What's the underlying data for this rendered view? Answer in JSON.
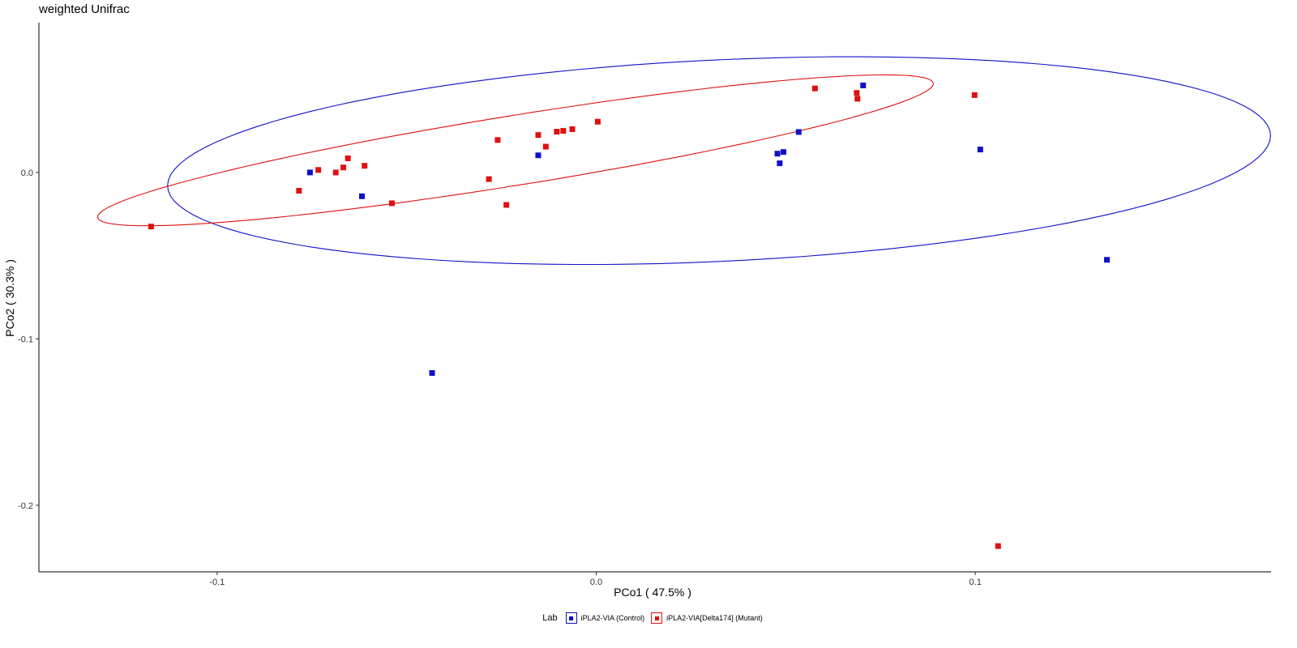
{
  "chart_data": {
    "type": "scatter",
    "title": "weighted Unifrac",
    "xlabel": "PCo1 ( 47.5% )",
    "ylabel": "PCo2 ( 30.3% )",
    "xlim": [
      -0.147,
      0.178
    ],
    "ylim": [
      -0.24,
      0.09
    ],
    "x_ticks": [
      -0.1,
      0.0,
      0.1
    ],
    "x_tick_labels": [
      "-0.1",
      "0.0",
      "0.1"
    ],
    "y_ticks": [
      0.0,
      -0.1,
      -0.2
    ],
    "y_tick_labels": [
      "0.0",
      "-0.1",
      "-0.2"
    ],
    "grid": false,
    "legend": {
      "title": "Lab",
      "position": "bottom",
      "entries": [
        "iPLA2-VIA (Control)",
        "iPLA2-VIA[Delta174] (Mutant)"
      ]
    },
    "colors": {
      "control": "#1010c8",
      "mutant": "#e01010"
    },
    "series": [
      {
        "name": "iPLA2-VIA (Control)",
        "color": "#1010c8",
        "points": [
          [
            -0.0755,
            0.0
          ],
          [
            -0.0618,
            -0.0143
          ],
          [
            -0.0433,
            -0.1205
          ],
          [
            -0.0153,
            0.0103
          ],
          [
            0.0478,
            0.0113
          ],
          [
            0.0484,
            0.0055
          ],
          [
            0.0494,
            0.0123
          ],
          [
            0.0534,
            0.0243
          ],
          [
            0.0704,
            0.0523
          ],
          [
            0.1013,
            0.0138
          ],
          [
            0.1347,
            -0.0525
          ]
        ]
      },
      {
        "name": "iPLA2-VIA[Delta174] (Mutant)",
        "color": "#e01010",
        "points": [
          [
            -0.1174,
            -0.0325
          ],
          [
            -0.0784,
            -0.011
          ],
          [
            -0.0733,
            0.0015
          ],
          [
            -0.0687,
            0.0
          ],
          [
            -0.0667,
            0.003
          ],
          [
            -0.0655,
            0.0085
          ],
          [
            -0.0611,
            0.004
          ],
          [
            -0.0539,
            -0.0185
          ],
          [
            -0.0283,
            -0.004
          ],
          [
            -0.026,
            0.0195
          ],
          [
            -0.0237,
            -0.0195
          ],
          [
            -0.0153,
            0.0225
          ],
          [
            -0.0133,
            0.0155
          ],
          [
            -0.0104,
            0.0245
          ],
          [
            -0.0087,
            0.025
          ],
          [
            -0.0063,
            0.026
          ],
          [
            0.0004,
            0.0305
          ],
          [
            0.0577,
            0.0505
          ],
          [
            0.0687,
            0.0478
          ],
          [
            0.0689,
            0.0443
          ],
          [
            0.0998,
            0.0465
          ],
          [
            0.106,
            -0.2245
          ]
        ]
      }
    ],
    "ellipses": [
      {
        "group": "iPLA2-VIA (Control)",
        "color": "#1010c8",
        "center": [
          0.0324,
          0.0071
        ],
        "semi_major": 0.1464,
        "semi_minor": 0.0602,
        "angle_deg": 7.1
      },
      {
        "group": "iPLA2-VIA[Delta174] (Mutant)",
        "color": "#e01010",
        "center": [
          -0.0213,
          0.0133
        ],
        "semi_major": 0.1175,
        "semi_minor": 0.0199,
        "angle_deg": 20.6
      }
    ]
  }
}
